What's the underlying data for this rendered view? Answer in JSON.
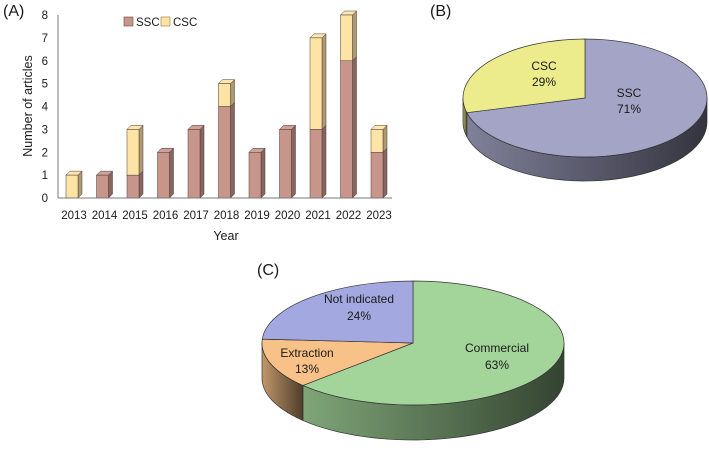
{
  "panels": {
    "a": "(A)",
    "b": "(B)",
    "c": "(C)"
  },
  "chart_data": [
    {
      "type": "bar",
      "stacked": true,
      "categories": [
        "2013",
        "2014",
        "2015",
        "2016",
        "2017",
        "2018",
        "2019",
        "2020",
        "2021",
        "2022",
        "2023"
      ],
      "series": [
        {
          "name": "SSC",
          "color": "#c8958a",
          "values": [
            0,
            1,
            1,
            2,
            3,
            4,
            2,
            3,
            3,
            6,
            2
          ]
        },
        {
          "name": "CSC",
          "color": "#fde4a4",
          "values": [
            1,
            0,
            2,
            0,
            0,
            1,
            0,
            0,
            4,
            2,
            1
          ]
        }
      ],
      "xlabel": "Year",
      "ylabel": "Number of articles",
      "ylim": [
        0,
        8
      ],
      "yticks": [
        "0",
        "1",
        "2",
        "3",
        "4",
        "5",
        "6",
        "7",
        "8"
      ],
      "grid": false,
      "legend": "top"
    },
    {
      "type": "pie",
      "slices": [
        {
          "label": "SSC",
          "value": 71,
          "percent_text": "71%",
          "color": "#a4a4c6"
        },
        {
          "label": "CSC",
          "value": 29,
          "percent_text": "29%",
          "color": "#ecec8c"
        }
      ]
    },
    {
      "type": "pie",
      "slices": [
        {
          "label": "Commercial",
          "value": 63,
          "percent_text": "63%",
          "color": "#a3d49a"
        },
        {
          "label": "Extraction",
          "value": 13,
          "percent_text": "13%",
          "color": "#f7c187"
        },
        {
          "label": "Not indicated",
          "value": 24,
          "percent_text": "24%",
          "color": "#a3a9e0"
        }
      ]
    }
  ]
}
